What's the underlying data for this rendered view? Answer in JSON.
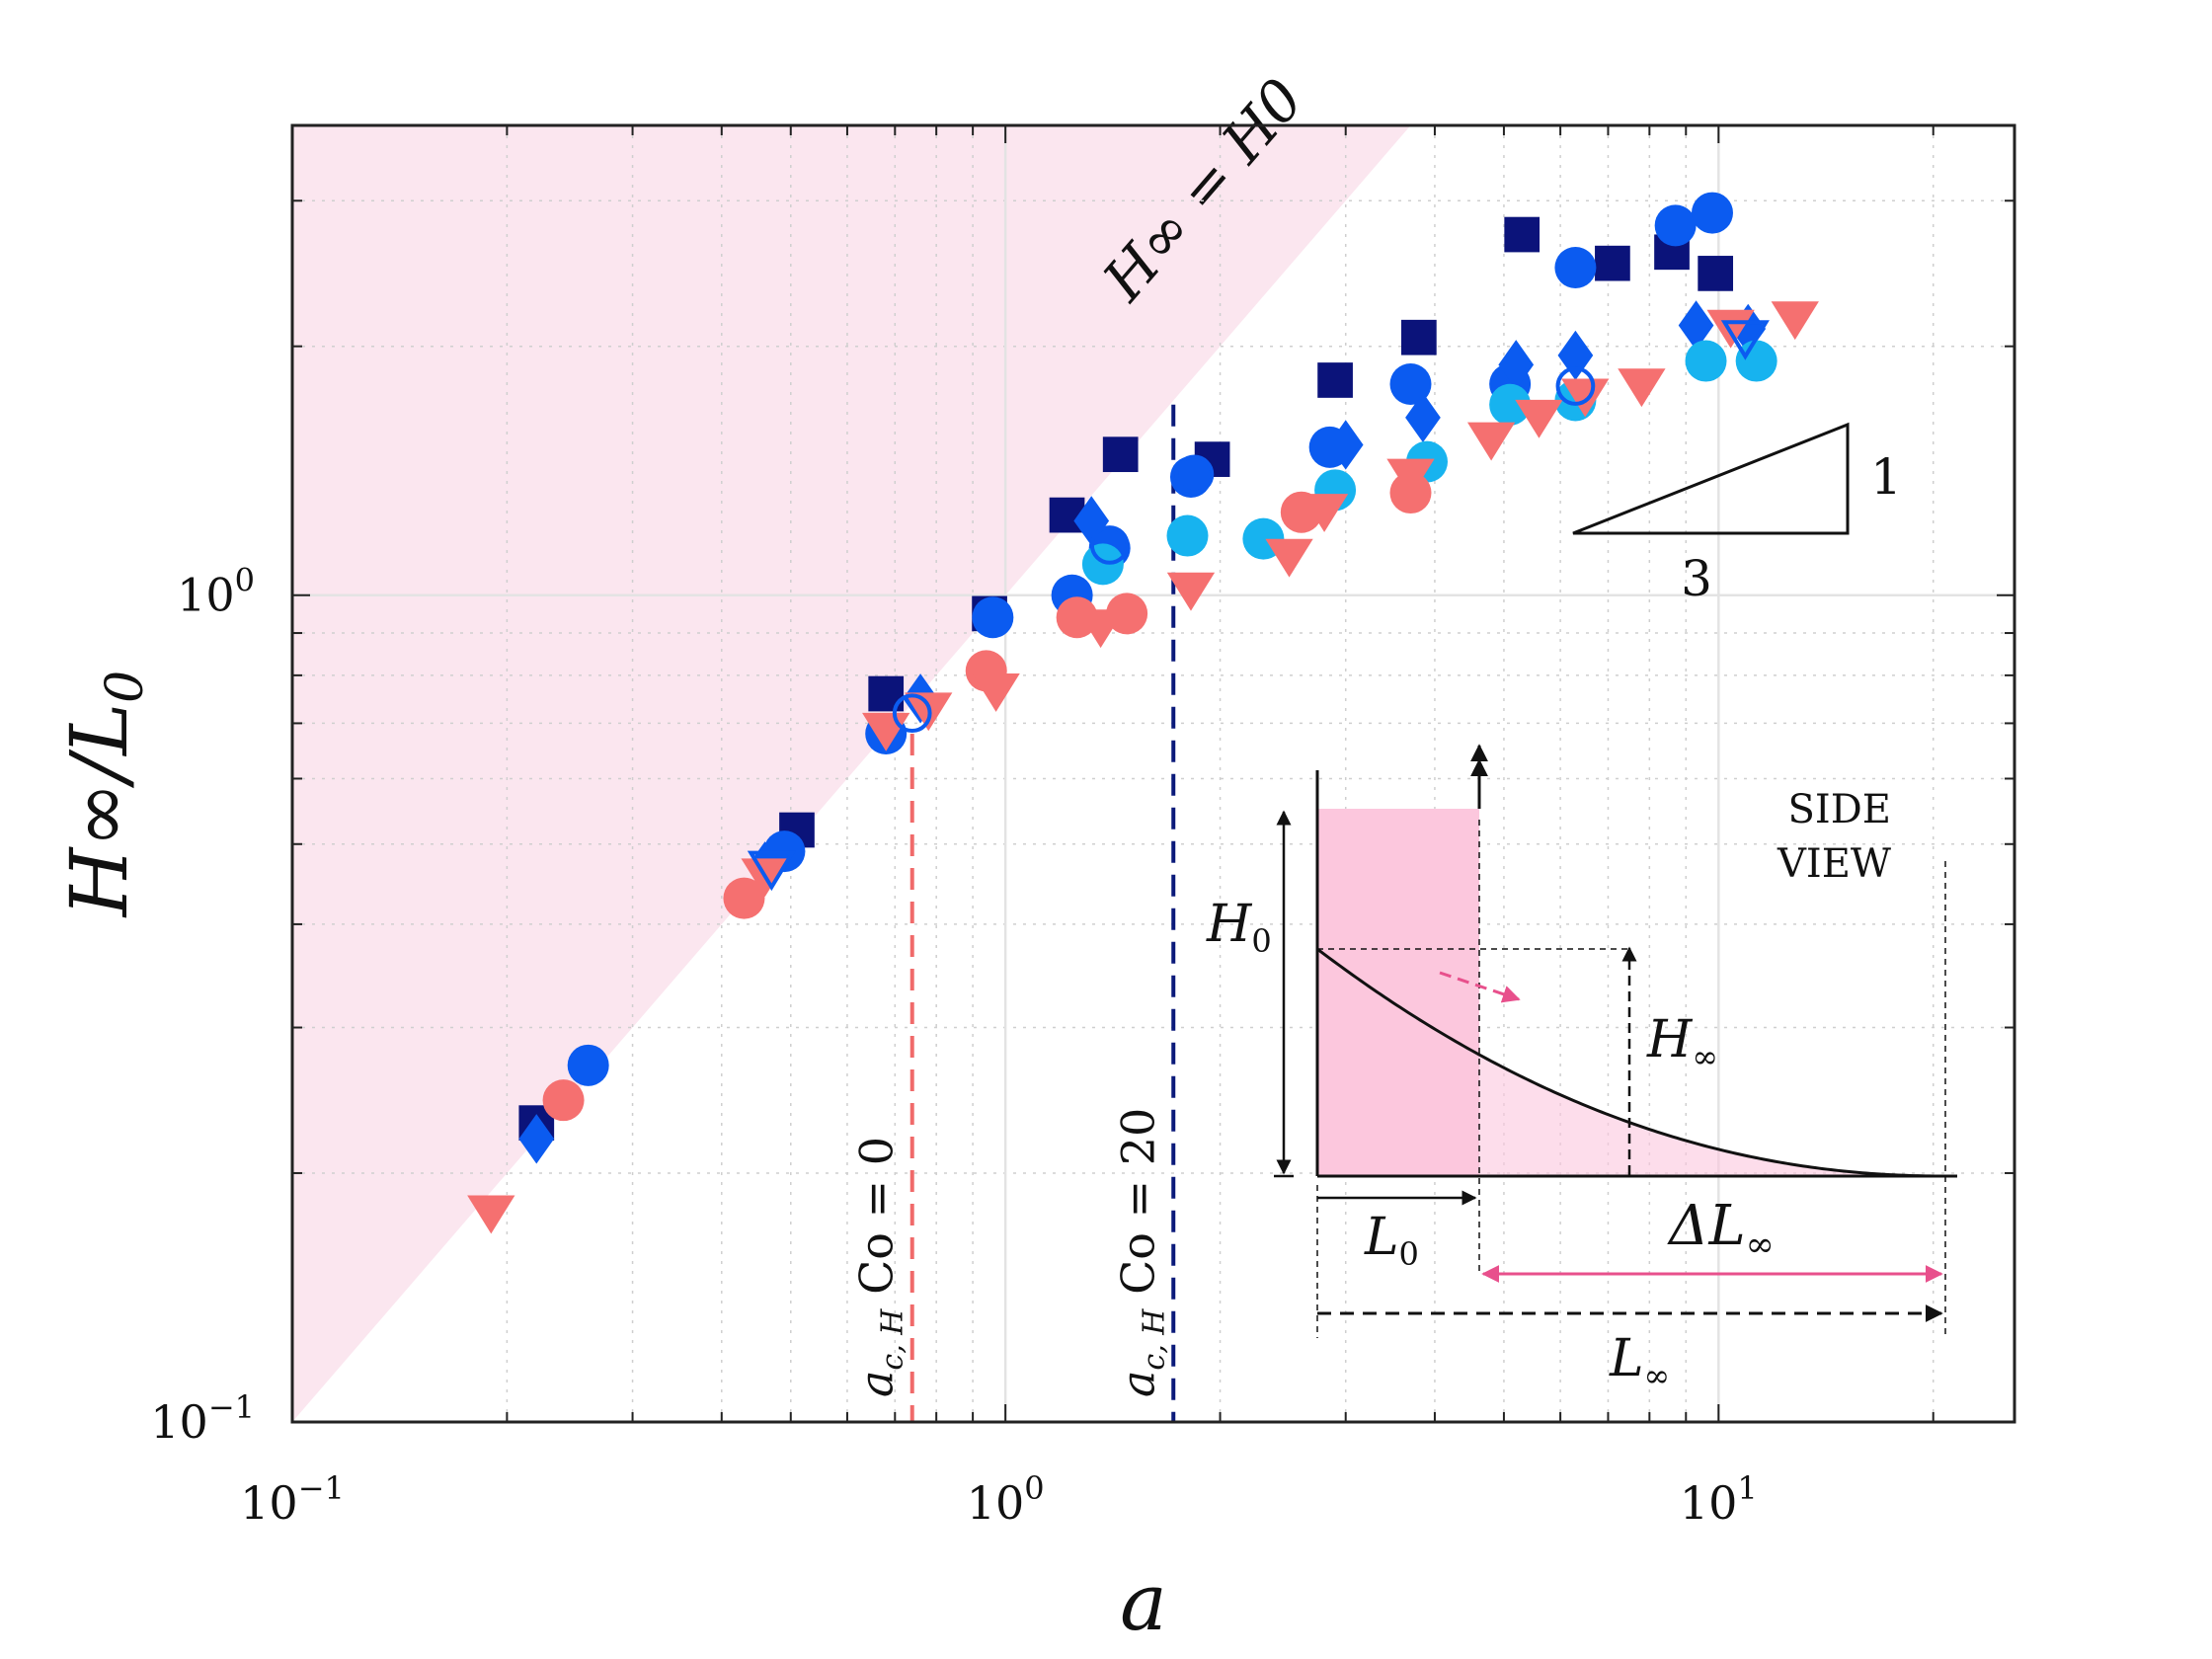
{
  "chart_data": {
    "type": "scatter",
    "title": "",
    "xlabel": "a",
    "ylabel": "H∞/L0",
    "x_scale": "log",
    "y_scale": "log",
    "xlim": [
      0.1,
      26
    ],
    "ylim": [
      0.1,
      3.7
    ],
    "grid": true,
    "x_tick_labels": [
      {
        "value": 0.1,
        "base": "10",
        "exp": "−1"
      },
      {
        "value": 1,
        "base": "10",
        "exp": "0"
      },
      {
        "value": 10,
        "base": "10",
        "exp": "1"
      }
    ],
    "y_tick_labels": [
      {
        "value": 0.1,
        "base": "10",
        "exp": "−1"
      },
      {
        "value": 1,
        "base": "10",
        "exp": "0"
      }
    ],
    "shaded_region_label": "H∞ = H0",
    "reference_lines": [
      {
        "label": "a c, H Co = 0",
        "x": 0.74,
        "color": "#f06a6a"
      },
      {
        "label": "a c, H Co = 20",
        "x": 1.72,
        "color": "#0b1a7a"
      }
    ],
    "slope_triangle": {
      "run_label": "3",
      "rise_label": "1"
    },
    "colors": {
      "navy": "#0b137a",
      "blue": "#0b5bf0",
      "cyan": "#17b3ef",
      "salmon": "#f57070",
      "shade": "#fbe6ef",
      "inset_fill": "#fcc7dd",
      "inset_accent": "#e8508c"
    },
    "series": [
      {
        "marker": "square",
        "color": "navy",
        "points": [
          [
            0.22,
            0.23
          ],
          [
            0.51,
            0.52
          ],
          [
            0.68,
            0.76
          ],
          [
            0.95,
            0.95
          ],
          [
            1.22,
            1.25
          ],
          [
            1.45,
            1.48
          ],
          [
            1.95,
            1.46
          ],
          [
            2.9,
            1.82
          ],
          [
            3.8,
            2.05
          ],
          [
            5.3,
            2.73
          ],
          [
            7.1,
            2.52
          ],
          [
            8.6,
            2.6
          ],
          [
            9.9,
            2.45
          ]
        ]
      },
      {
        "marker": "circle",
        "color": "blue",
        "points": [
          [
            0.26,
            0.27
          ],
          [
            0.49,
            0.49
          ],
          [
            0.68,
            0.68
          ],
          [
            0.96,
            0.94
          ],
          [
            1.24,
            1.0
          ],
          [
            1.4,
            1.14
          ],
          [
            1.82,
            1.39
          ],
          [
            2.85,
            1.51
          ],
          [
            3.7,
            1.8
          ],
          [
            5.1,
            1.8
          ],
          [
            6.3,
            2.49
          ],
          [
            8.7,
            2.8
          ],
          [
            9.8,
            2.9
          ]
        ]
      },
      {
        "marker": "diamond",
        "color": "blue",
        "points": [
          [
            0.22,
            0.22
          ],
          [
            0.46,
            0.47
          ],
          [
            0.76,
            0.75
          ],
          [
            1.32,
            1.23
          ],
          [
            3.0,
            1.52
          ],
          [
            3.85,
            1.64
          ],
          [
            5.2,
            1.9
          ],
          [
            6.3,
            1.95
          ],
          [
            9.3,
            2.12
          ],
          [
            11,
            2.1
          ]
        ]
      },
      {
        "marker": "circle",
        "color": "cyan",
        "points": [
          [
            1.37,
            1.09
          ],
          [
            1.8,
            1.18
          ],
          [
            2.3,
            1.17
          ],
          [
            2.9,
            1.34
          ],
          [
            3.9,
            1.45
          ],
          [
            5.1,
            1.7
          ],
          [
            6.3,
            1.72
          ],
          [
            9.6,
            1.92
          ],
          [
            11.3,
            1.92
          ]
        ]
      },
      {
        "marker": "circle",
        "color": "salmon",
        "points": [
          [
            0.24,
            0.245
          ],
          [
            0.43,
            0.43
          ],
          [
            0.94,
            0.81
          ],
          [
            1.26,
            0.94
          ],
          [
            1.48,
            0.95
          ],
          [
            2.6,
            1.26
          ],
          [
            3.7,
            1.33
          ]
        ]
      },
      {
        "marker": "triangle-down",
        "color": "salmon",
        "points": [
          [
            0.19,
            0.18
          ],
          [
            0.46,
            0.46
          ],
          [
            0.68,
            0.69
          ],
          [
            0.78,
            0.73
          ],
          [
            0.97,
            0.77
          ],
          [
            1.36,
            0.92
          ],
          [
            1.82,
            1.02
          ],
          [
            2.5,
            1.12
          ],
          [
            2.8,
            1.27
          ],
          [
            3.7,
            1.4
          ],
          [
            4.8,
            1.55
          ],
          [
            5.6,
            1.65
          ],
          [
            6.5,
            1.75
          ],
          [
            7.8,
            1.8
          ],
          [
            10.4,
            2.12
          ],
          [
            12.8,
            2.17
          ]
        ]
      },
      {
        "marker": "open-circle",
        "color": "blue",
        "points": [
          [
            0.74,
            0.72
          ],
          [
            1.4,
            1.15
          ],
          [
            1.84,
            1.4
          ],
          [
            6.3,
            1.79
          ]
        ]
      },
      {
        "marker": "open-triangle-down",
        "color": "blue",
        "points": [
          [
            0.47,
            0.47
          ],
          [
            10.9,
            2.06
          ]
        ]
      }
    ]
  },
  "inset": {
    "title_line1": "SIDE",
    "title_line2": "VIEW",
    "h0_label": "H",
    "h0_sub": "0",
    "l0_label": "L",
    "l0_sub": "0",
    "hinf_label": "H",
    "hinf_sub": "∞",
    "dl_label": "ΔL",
    "dl_sub": "∞",
    "linf_label": "L",
    "linf_sub": "∞"
  }
}
